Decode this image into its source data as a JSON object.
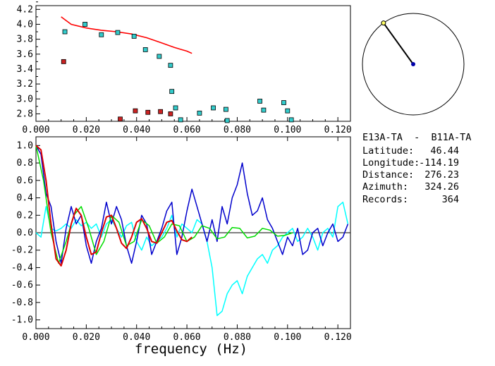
{
  "chart_data": [
    {
      "type": "scatter",
      "name": "dispersion",
      "xlim": [
        0,
        0.125
      ],
      "ylim": [
        2.7,
        4.25
      ],
      "x_ticks": [
        "0.000",
        "0.020",
        "0.040",
        "0.060",
        "0.080",
        "0.100",
        "0.120"
      ],
      "y_ticks": [
        "2.8",
        "3.0",
        "3.2",
        "3.4",
        "3.6",
        "3.8",
        "4.0",
        "4.2"
      ],
      "colors": {
        "curve": "#ff0000",
        "cyan": "#33cccc",
        "red": "#cc2222"
      },
      "curve": {
        "x": [
          0.01,
          0.014,
          0.02,
          0.026,
          0.032,
          0.038,
          0.044,
          0.05,
          0.055,
          0.06,
          0.062
        ],
        "y": [
          4.1,
          4.0,
          3.95,
          3.92,
          3.9,
          3.87,
          3.82,
          3.75,
          3.69,
          3.64,
          3.61
        ]
      },
      "cyan_points": {
        "x": [
          0.0115,
          0.0195,
          0.026,
          0.0325,
          0.039,
          0.0435,
          0.049,
          0.0535,
          0.054,
          0.0555,
          0.0575,
          0.065,
          0.0705,
          0.0755,
          0.076,
          0.089,
          0.0905,
          0.0985,
          0.1,
          0.1015
        ],
        "y": [
          3.9,
          4.0,
          3.86,
          3.89,
          3.84,
          3.66,
          3.57,
          3.45,
          3.1,
          2.88,
          2.72,
          2.81,
          2.88,
          2.86,
          2.71,
          2.97,
          2.85,
          2.95,
          2.84,
          2.72
        ]
      },
      "red_points": {
        "x": [
          0.011,
          0.0335,
          0.0395,
          0.0445,
          0.0495,
          0.0535
        ],
        "y": [
          3.5,
          2.73,
          2.84,
          2.82,
          2.83,
          2.8
        ]
      }
    },
    {
      "type": "line",
      "name": "correlation",
      "xlabel": "frequency (Hz)",
      "xlim": [
        0,
        0.125
      ],
      "ylim": [
        -1.1,
        1.1
      ],
      "x_ticks": [
        "0.000",
        "0.020",
        "0.040",
        "0.060",
        "0.080",
        "0.100",
        "0.120"
      ],
      "y_ticks": [
        "1.0",
        "0.8",
        "0.6",
        "0.4",
        "0.2",
        "0.0",
        "-0.2",
        "-0.4",
        "-0.6",
        "-0.8",
        "-1.0"
      ],
      "series": [
        {
          "color": "#00ffff",
          "x": [
            0,
            0.002,
            0.004,
            0.006,
            0.008,
            0.01,
            0.012,
            0.014,
            0.016,
            0.018,
            0.02,
            0.022,
            0.024,
            0.026,
            0.028,
            0.03,
            0.032,
            0.034,
            0.036,
            0.038,
            0.04,
            0.042,
            0.044,
            0.046,
            0.048,
            0.05,
            0.052,
            0.054,
            0.056,
            0.058,
            0.06,
            0.062,
            0.064,
            0.066,
            0.068,
            0.07,
            0.072,
            0.074,
            0.076,
            0.078,
            0.08,
            0.082,
            0.084,
            0.086,
            0.088,
            0.09,
            0.092,
            0.094,
            0.096,
            0.098,
            0.1,
            0.102,
            0.104,
            0.106,
            0.108,
            0.11,
            0.112,
            0.114,
            0.116,
            0.118,
            0.12,
            0.122,
            0.124
          ],
          "y": [
            0.0,
            -0.05,
            0.3,
            0.05,
            0.02,
            0.05,
            0.1,
            0.05,
            0.15,
            0.08,
            0.12,
            0.05,
            0.1,
            -0.05,
            0.1,
            0.15,
            0.05,
            -0.05,
            0.08,
            0.12,
            -0.1,
            -0.2,
            -0.05,
            -0.15,
            -0.1,
            -0.05,
            0.05,
            0.2,
            -0.05,
            0.1,
            0.05,
            0.0,
            0.15,
            0.1,
            -0.1,
            -0.4,
            -0.95,
            -0.9,
            -0.7,
            -0.6,
            -0.55,
            -0.7,
            -0.5,
            -0.4,
            -0.3,
            -0.25,
            -0.35,
            -0.2,
            -0.15,
            -0.05,
            0.0,
            0.05,
            -0.1,
            -0.05,
            0.05,
            -0.05,
            -0.2,
            0.0,
            0.05,
            -0.05,
            0.3,
            0.35,
            0.1
          ]
        },
        {
          "color": "#0000cc",
          "x": [
            0,
            0.002,
            0.004,
            0.006,
            0.008,
            0.01,
            0.012,
            0.014,
            0.016,
            0.018,
            0.02,
            0.022,
            0.024,
            0.026,
            0.028,
            0.03,
            0.032,
            0.034,
            0.036,
            0.038,
            0.04,
            0.042,
            0.044,
            0.046,
            0.048,
            0.05,
            0.052,
            0.054,
            0.056,
            0.058,
            0.06,
            0.062,
            0.064,
            0.066,
            0.068,
            0.07,
            0.072,
            0.074,
            0.076,
            0.078,
            0.08,
            0.082,
            0.084,
            0.086,
            0.088,
            0.09,
            0.092,
            0.094,
            0.096,
            0.098,
            0.1,
            0.102,
            0.104,
            0.106,
            0.108,
            0.11,
            0.112,
            0.114,
            0.116,
            0.118,
            0.12,
            0.122,
            0.124
          ],
          "y": [
            1.0,
            0.9,
            0.45,
            0.3,
            -0.1,
            -0.35,
            0.05,
            0.3,
            0.1,
            0.2,
            -0.15,
            -0.35,
            -0.1,
            0.05,
            0.35,
            0.1,
            0.3,
            0.15,
            -0.15,
            -0.35,
            -0.1,
            0.2,
            0.1,
            -0.25,
            -0.1,
            0.05,
            0.25,
            0.35,
            -0.25,
            -0.05,
            0.25,
            0.5,
            0.3,
            0.1,
            -0.1,
            0.15,
            -0.1,
            0.3,
            0.1,
            0.4,
            0.55,
            0.8,
            0.45,
            0.2,
            0.25,
            0.4,
            0.15,
            0.05,
            -0.1,
            -0.25,
            -0.05,
            -0.15,
            0.05,
            -0.25,
            -0.2,
            0.0,
            0.05,
            -0.15,
            0.0,
            0.1,
            -0.1,
            -0.05,
            0.1
          ]
        },
        {
          "color": "#00dd00",
          "x": [
            0,
            0.003,
            0.006,
            0.009,
            0.012,
            0.015,
            0.018,
            0.021,
            0.024,
            0.027,
            0.03,
            0.033,
            0.036,
            0.039,
            0.042,
            0.045,
            0.048,
            0.051,
            0.054,
            0.057,
            0.06,
            0.063,
            0.066,
            0.069,
            0.072,
            0.075,
            0.078,
            0.081,
            0.084,
            0.087,
            0.09,
            0.093,
            0.096,
            0.099,
            0.102
          ],
          "y": [
            1.0,
            0.6,
            0.0,
            -0.35,
            -0.1,
            0.2,
            0.3,
            0.05,
            -0.25,
            -0.1,
            0.2,
            0.12,
            -0.15,
            -0.1,
            0.15,
            0.08,
            -0.12,
            -0.05,
            0.1,
            0.08,
            -0.1,
            -0.05,
            0.08,
            0.05,
            -0.07,
            -0.05,
            0.06,
            0.05,
            -0.06,
            -0.04,
            0.05,
            0.03,
            -0.04,
            -0.03,
            0.0
          ]
        },
        {
          "color": "#dd0000",
          "x": [
            0,
            0.002,
            0.004,
            0.006,
            0.008,
            0.01,
            0.012,
            0.014,
            0.016,
            0.018,
            0.02,
            0.022,
            0.024,
            0.026,
            0.028,
            0.03,
            0.032,
            0.034,
            0.036,
            0.038,
            0.04,
            0.042,
            0.044,
            0.046,
            0.048,
            0.05,
            0.052,
            0.054,
            0.056,
            0.058,
            0.06,
            0.062
          ],
          "y": [
            1.0,
            0.95,
            0.6,
            0.1,
            -0.3,
            -0.38,
            -0.2,
            0.1,
            0.28,
            0.2,
            -0.05,
            -0.25,
            -0.22,
            0.0,
            0.18,
            0.2,
            0.05,
            -0.12,
            -0.18,
            -0.05,
            0.12,
            0.16,
            0.05,
            -0.1,
            -0.12,
            0.0,
            0.12,
            0.14,
            0.02,
            -0.08,
            -0.1,
            -0.05
          ]
        }
      ]
    }
  ],
  "azimuth_dial": {
    "azimuth_deg": 324.26
  },
  "info": {
    "station_pair": "E13A-TA  -  B11A-TA",
    "latitude_label": "Latitude:",
    "latitude_value": "46.44",
    "longitude_label": "Longitude:",
    "longitude_value": "-114.19",
    "distance_label": "Distance:",
    "distance_value": "276.23",
    "azimuth_label": "Azimuth:",
    "azimuth_value": "324.26",
    "records_label": "Records:",
    "records_value": "364"
  }
}
